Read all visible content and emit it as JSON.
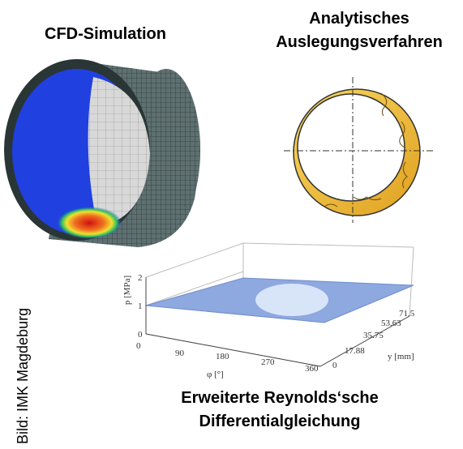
{
  "cfd": {
    "title": "CFD-Simulation"
  },
  "analytic": {
    "title_lines": [
      "Analytisches",
      "Auslegungsverfahren"
    ]
  },
  "plot": {
    "p_label": "p [MPa]",
    "phi_label": "φ [°]",
    "y_label": "y [mm]",
    "p_ticks": [
      0,
      1,
      2
    ],
    "phi_ticks": [
      0,
      90,
      180,
      270,
      360
    ],
    "y_ticks": [
      0,
      17.88,
      35.75,
      53.63,
      71.5
    ]
  },
  "caption": {
    "lines": [
      "Erweiterte Reynolds‘sche",
      "Differentialgleichung"
    ]
  },
  "credit": "Bild: IMK Magdeburg"
}
